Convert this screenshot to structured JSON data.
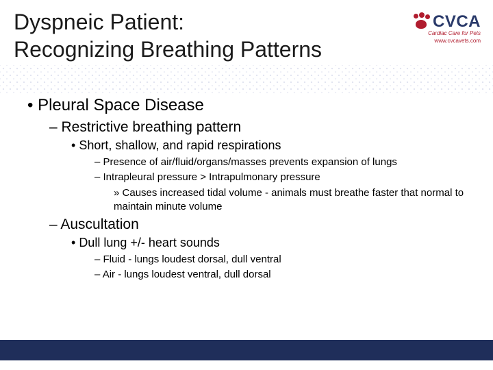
{
  "header": {
    "title_line1": "Dyspneic Patient:",
    "title_line2": "Recognizing Breathing Patterns",
    "logo_text": "CVCA",
    "logo_subtitle": "Cardiac Care for Pets",
    "logo_url": "www.cvcavets.com",
    "logo_text_color": "#2a3a6a",
    "logo_accent_color": "#b01c2e"
  },
  "content": {
    "l1_1": "Pleural Space Disease",
    "l2_1": "Restrictive breathing pattern",
    "l3_1": "Short, shallow, and rapid respirations",
    "l4_1": "Presence of air/fluid/organs/masses prevents expansion of lungs",
    "l4_2": "Intrapleural pressure > Intrapulmonary pressure",
    "l5_1": "Causes increased tidal volume - animals must breathe faster that normal to maintain minute volume",
    "l2_2": "Auscultation",
    "l3_2": "Dull lung +/- heart sounds",
    "l4_3": "Fluid - lungs loudest dorsal, dull ventral",
    "l4_4": "Air - lungs loudest ventral, dull dorsal"
  },
  "style": {
    "footer_color": "#1f2e5a",
    "background": "#ffffff",
    "title_fontsize": 32,
    "l1_fontsize": 24,
    "l2_fontsize": 21,
    "l3_fontsize": 18,
    "l4_fontsize": 15,
    "l5_fontsize": 15
  }
}
